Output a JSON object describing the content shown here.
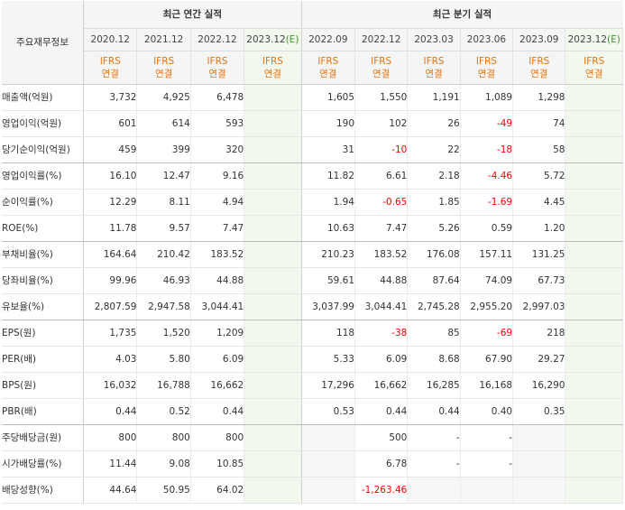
{
  "corner_label": "주요재무정보",
  "annual_header": "최근 연간 실적",
  "quarter_header": "최근 분기 실적",
  "periods": [
    {
      "label": "2020.12",
      "est": "",
      "estimate": false
    },
    {
      "label": "2021.12",
      "est": "",
      "estimate": false
    },
    {
      "label": "2022.12",
      "est": "",
      "estimate": false
    },
    {
      "label": "2023.12",
      "est": "(E)",
      "estimate": true
    },
    {
      "label": "2022.09",
      "est": "",
      "estimate": false
    },
    {
      "label": "2022.12",
      "est": "",
      "estimate": false
    },
    {
      "label": "2023.03",
      "est": "",
      "estimate": false
    },
    {
      "label": "2023.06",
      "est": "",
      "estimate": false
    },
    {
      "label": "2023.09",
      "est": "",
      "estimate": false
    },
    {
      "label": "2023.12",
      "est": "(E)",
      "estimate": true
    }
  ],
  "ifrs": {
    "line1": "IFRS",
    "line2": "연결"
  },
  "colors": {
    "negative": "#ff0000",
    "ifrs": "#e8740c",
    "estimate_bg": "#f3f8ee",
    "estimate_text": "#3a9d23"
  },
  "rows": [
    {
      "label": "매출액(억원)",
      "values": [
        "3,732",
        "4,925",
        "6,478",
        "",
        "1,605",
        "1,550",
        "1,191",
        "1,089",
        "1,298",
        ""
      ],
      "group_end": false
    },
    {
      "label": "영업이익(억원)",
      "values": [
        "601",
        "614",
        "593",
        "",
        "190",
        "102",
        "26",
        "-49",
        "74",
        ""
      ],
      "group_end": false
    },
    {
      "label": "당기순이익(억원)",
      "values": [
        "459",
        "399",
        "320",
        "",
        "31",
        "-10",
        "22",
        "-18",
        "58",
        ""
      ],
      "group_end": true
    },
    {
      "label": "영업이익률(%)",
      "values": [
        "16.10",
        "12.47",
        "9.16",
        "",
        "11.82",
        "6.61",
        "2.18",
        "-4.46",
        "5.72",
        ""
      ],
      "group_end": false
    },
    {
      "label": "순이익률(%)",
      "values": [
        "12.29",
        "8.11",
        "4.94",
        "",
        "1.94",
        "-0.65",
        "1.85",
        "-1.69",
        "4.45",
        ""
      ],
      "group_end": false
    },
    {
      "label": "ROE(%)",
      "values": [
        "11.78",
        "9.57",
        "7.47",
        "",
        "10.63",
        "7.47",
        "5.26",
        "0.59",
        "1.20",
        ""
      ],
      "group_end": true
    },
    {
      "label": "부채비율(%)",
      "values": [
        "164.64",
        "210.42",
        "183.52",
        "",
        "210.23",
        "183.52",
        "176.08",
        "157.11",
        "131.25",
        ""
      ],
      "group_end": false
    },
    {
      "label": "당좌비율(%)",
      "values": [
        "99.96",
        "46.93",
        "44.88",
        "",
        "59.61",
        "44.88",
        "87.64",
        "74.09",
        "67.73",
        ""
      ],
      "group_end": false
    },
    {
      "label": "유보율(%)",
      "values": [
        "2,807.59",
        "2,947.58",
        "3,044.41",
        "",
        "3,037.99",
        "3,044.41",
        "2,745.28",
        "2,955.20",
        "2,997.03",
        ""
      ],
      "group_end": true
    },
    {
      "label": "EPS(원)",
      "values": [
        "1,735",
        "1,520",
        "1,209",
        "",
        "118",
        "-38",
        "85",
        "-69",
        "218",
        ""
      ],
      "group_end": false
    },
    {
      "label": "PER(배)",
      "values": [
        "4.03",
        "5.80",
        "6.09",
        "",
        "5.33",
        "6.09",
        "8.68",
        "67.90",
        "29.27",
        ""
      ],
      "group_end": false
    },
    {
      "label": "BPS(원)",
      "values": [
        "16,032",
        "16,788",
        "16,662",
        "",
        "17,296",
        "16,662",
        "16,285",
        "16,168",
        "16,290",
        ""
      ],
      "group_end": false
    },
    {
      "label": "PBR(배)",
      "values": [
        "0.44",
        "0.52",
        "0.44",
        "",
        "0.53",
        "0.44",
        "0.44",
        "0.40",
        "0.35",
        ""
      ],
      "group_end": true
    },
    {
      "label": "주당배당금(원)",
      "values": [
        "800",
        "800",
        "800",
        "",
        "",
        "500",
        "-",
        "-",
        "",
        ""
      ],
      "group_end": false
    },
    {
      "label": "시가배당률(%)",
      "values": [
        "11.44",
        "9.08",
        "10.85",
        "",
        "",
        "6.78",
        "-",
        "-",
        "",
        ""
      ],
      "group_end": false
    },
    {
      "label": "배당성향(%)",
      "values": [
        "44.64",
        "50.95",
        "64.02",
        "",
        "",
        "-1,263.46",
        "",
        "",
        "",
        ""
      ],
      "group_end": false
    }
  ]
}
